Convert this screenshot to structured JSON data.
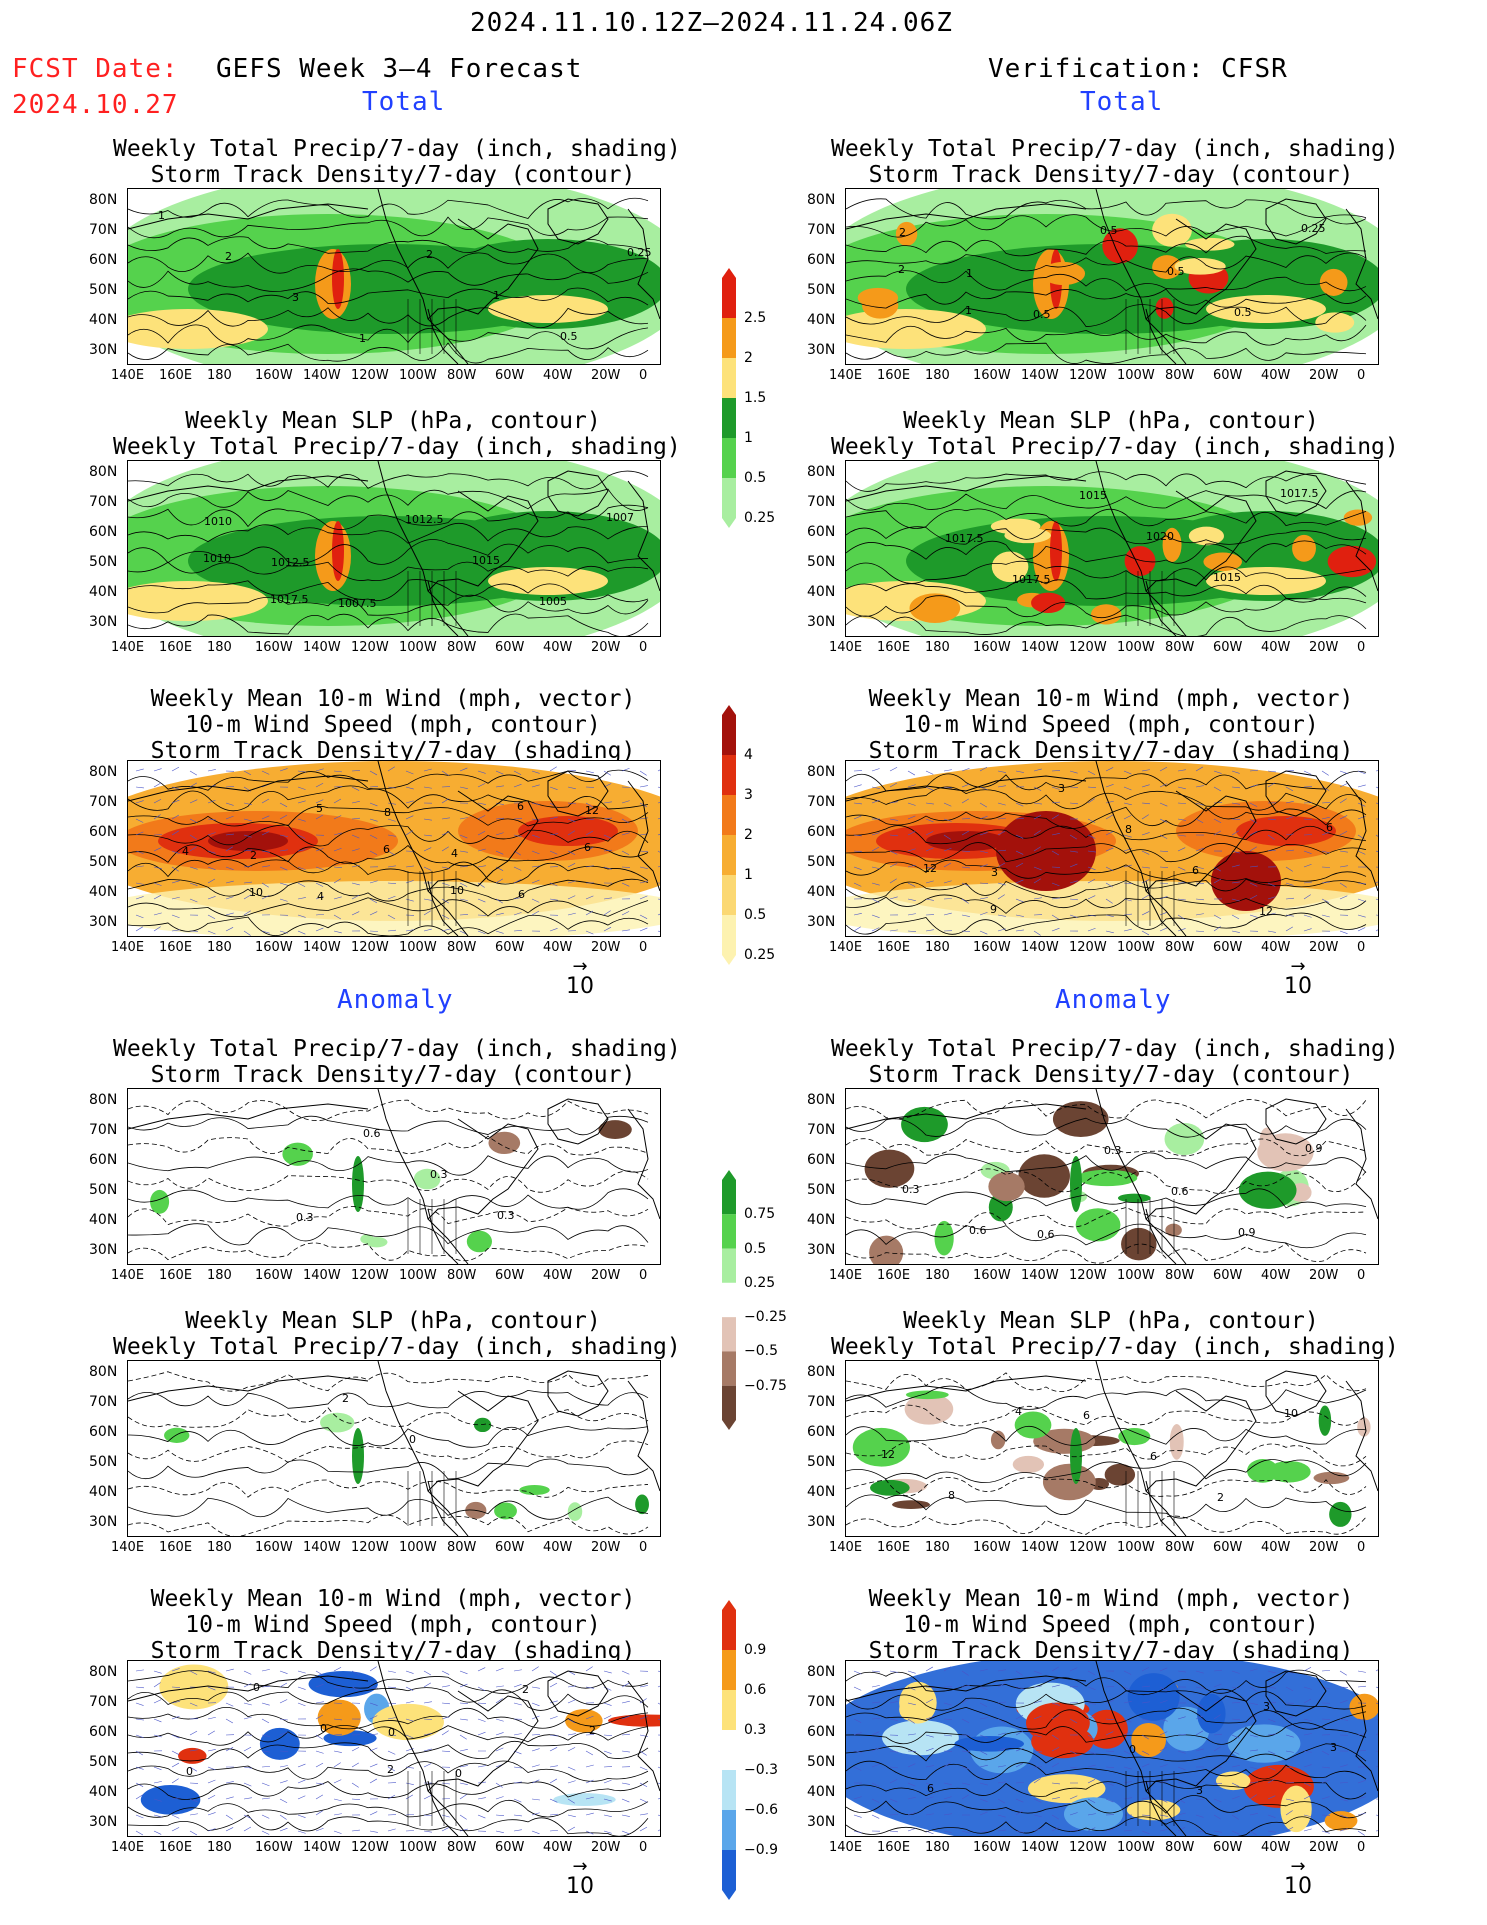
{
  "header": {
    "period": "2024.11.10.12Z–2024.11.24.06Z",
    "fcst_label": "FCST Date:",
    "fcst_date": "2024.10.27",
    "left_product": "GEFS Week 3–4 Forecast",
    "right_product": "Verification: CFSR"
  },
  "sections": {
    "total": "Total",
    "anomaly": "Anomaly"
  },
  "panels": [
    {
      "id": "fc-total-precip",
      "t1": "Weekly Total Precip/7-day (inch, shading)",
      "t2": "Storm Track Density/7-day (contour)",
      "t3": "",
      "type": "precip",
      "labels": [
        "1",
        "2",
        "3",
        "1",
        "2",
        "1",
        "0.5",
        "0.25"
      ]
    },
    {
      "id": "vr-total-precip",
      "t1": "Weekly Total Precip/7-day (inch, shading)",
      "t2": "Storm Track Density/7-day (contour)",
      "t3": "",
      "type": "precip2",
      "labels": [
        "2",
        "1",
        "0.5",
        "0.5",
        "0.5",
        "0.5",
        "0.25",
        "2",
        "1"
      ]
    },
    {
      "id": "fc-total-slp",
      "t1": "Weekly Mean SLP (hPa, contour)",
      "t2": "Weekly Total Precip/7-day (inch, shading)",
      "t3": "",
      "type": "precip",
      "labels": [
        "1010",
        "1012.5",
        "1007.5",
        "1012.5",
        "1015",
        "1005",
        "1007",
        "1010",
        "1017.5"
      ]
    },
    {
      "id": "vr-total-slp",
      "t1": "Weekly Mean SLP (hPa, contour)",
      "t2": "Weekly Total Precip/7-day (inch, shading)",
      "t3": "",
      "type": "precip2",
      "labels": [
        "1017.5",
        "1017.5",
        "1015",
        "1020",
        "1015",
        "1017.5"
      ]
    },
    {
      "id": "fc-total-wind",
      "t1": "Weekly Mean 10-m Wind (mph, vector)",
      "t2": "10-m Wind Speed (mph, contour)",
      "t3": "Storm Track Density/7-day (shading)",
      "type": "storm",
      "labels": [
        "2",
        "4",
        "8",
        "4",
        "6",
        "12",
        "4",
        "10",
        "5",
        "6",
        "10",
        "6",
        "6"
      ]
    },
    {
      "id": "vr-total-wind",
      "t1": "Weekly Mean 10-m Wind (mph, vector)",
      "t2": "10-m Wind Speed (mph, contour)",
      "t3": "Storm Track Density/7-day (shading)",
      "type": "storm2",
      "labels": [
        "3",
        "3",
        "8",
        "6",
        "12",
        "6",
        "12",
        "9"
      ]
    },
    {
      "id": "fc-anom-precip",
      "t1": "Weekly Total Precip/7-day (inch, shading)",
      "t2": "Storm Track Density/7-day (contour)",
      "t3": "",
      "type": "anom",
      "labels": [
        "0.3",
        "0.6",
        "0.3",
        "0.3"
      ]
    },
    {
      "id": "vr-anom-precip",
      "t1": "Weekly Total Precip/7-day (inch, shading)",
      "t2": "Storm Track Density/7-day (contour)",
      "t3": "",
      "type": "anom2",
      "labels": [
        "0.6",
        "0.3",
        "0.6",
        "0.9",
        "0.9",
        "0.3",
        "0.6"
      ]
    },
    {
      "id": "fc-anom-slp",
      "t1": "Weekly Mean SLP (hPa, contour)",
      "t2": "Weekly Total Precip/7-day (inch, shading)",
      "t3": "",
      "type": "anom",
      "labels": [
        "2",
        "0"
      ]
    },
    {
      "id": "vr-anom-slp",
      "t1": "Weekly Mean SLP (hPa, contour)",
      "t2": "Weekly Total Precip/7-day (inch, shading)",
      "t3": "",
      "type": "anom2",
      "labels": [
        "6",
        "6",
        "2",
        "10",
        "12",
        "8",
        "4"
      ]
    },
    {
      "id": "fc-anom-wind",
      "t1": "Weekly Mean 10-m Wind (mph, vector)",
      "t2": "10-m Wind Speed (mph, contour)",
      "t3": "Storm Track Density/7-day (shading)",
      "type": "wanom",
      "labels": [
        "0",
        "0",
        "2",
        "2",
        "0",
        "0",
        "0",
        "2"
      ]
    },
    {
      "id": "vr-anom-wind",
      "t1": "Weekly Mean 10-m Wind (mph, vector)",
      "t2": "10-m Wind Speed (mph, contour)",
      "t3": "Storm Track Density/7-day (shading)",
      "type": "wanom2",
      "labels": [
        "0",
        "3",
        "3",
        "3",
        "6"
      ]
    }
  ],
  "lat_labels": [
    "80N",
    "70N",
    "60N",
    "50N",
    "40N",
    "30N"
  ],
  "lon_labels": [
    "140E",
    "160E",
    "180",
    "160W",
    "140W",
    "120W",
    "100W",
    "80W",
    "60W",
    "40W",
    "20W",
    "0"
  ],
  "colorbars": [
    {
      "id": "cbar-precip",
      "ticks": [
        "2.5",
        "2",
        "1.5",
        "1",
        "0.5",
        "0.25"
      ],
      "colors": [
        "#e0200f",
        "#f59a1a",
        "#fde27a",
        "#1e9a2a",
        "#55d24d",
        "#a8eea0"
      ]
    },
    {
      "id": "cbar-storm",
      "ticks": [
        "4",
        "3",
        "2",
        "1",
        "0.5",
        "0.25"
      ],
      "colors": [
        "#a3110b",
        "#e0300f",
        "#f27a1a",
        "#f7ad32",
        "#fbd873",
        "#fdf2b0"
      ]
    },
    {
      "id": "cbar-anom-precip",
      "ticks": [
        "0.75",
        "0.5",
        "0.25",
        "−0.25",
        "−0.5",
        "−0.75"
      ],
      "colors": [
        "#1e9a2a",
        "#55d24d",
        "#a8eea0",
        "#ffffff",
        "#e2c3b6",
        "#a67a66",
        "#6b4433"
      ]
    },
    {
      "id": "cbar-anom-storm",
      "ticks": [
        "0.9",
        "0.6",
        "0.3",
        "−0.3",
        "−0.6",
        "−0.9"
      ],
      "colors": [
        "#e0300f",
        "#f59a1a",
        "#fde27a",
        "#ffffff",
        "#b7e4f4",
        "#5aa6ea",
        "#1d5fd4"
      ]
    }
  ],
  "vector_ref": "10"
}
